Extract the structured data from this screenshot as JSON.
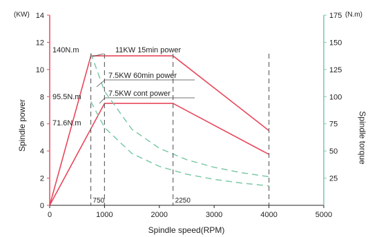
{
  "chart_data": {
    "type": "line",
    "xlabel": "Spindle speed(RPM)",
    "ylabel_left": "Spindle power",
    "ylabel_right": "Spindle torque",
    "unit_left": "(KW)",
    "unit_right": "(N.m)",
    "xlim": [
      0,
      5000
    ],
    "ylim_left": [
      0,
      14
    ],
    "ylim_right": [
      0,
      175
    ],
    "x_ticks": [
      "0",
      "1000",
      "2000",
      "3000",
      "4000",
      "5000"
    ],
    "x_tick_values": [
      0,
      1000,
      2000,
      3000,
      4000,
      5000
    ],
    "y_left_ticks": [
      "0",
      "2",
      "4",
      "6",
      "8",
      "10",
      "12",
      "14"
    ],
    "y_left_tick_values": [
      0,
      2,
      4,
      6,
      8,
      10,
      12,
      14
    ],
    "y_right_ticks": [
      "25",
      "50",
      "75",
      "100",
      "125",
      "150",
      "175"
    ],
    "y_right_tick_values": [
      25,
      50,
      75,
      100,
      125,
      150,
      175
    ],
    "colors": {
      "power": "#e8465a",
      "torque": "#7cc9a6",
      "axis_left": "#e8465a",
      "axis_right": "#7cc9a6",
      "marker": "#666666"
    },
    "series": [
      {
        "kind": "power",
        "axis": "left",
        "x": [
          0,
          750,
          2250,
          4000
        ],
        "y": [
          0,
          11,
          11,
          5.5
        ]
      },
      {
        "kind": "power",
        "axis": "left",
        "x": [
          0,
          1000,
          2250,
          4000
        ],
        "y": [
          0,
          7.5,
          7.5,
          3.75
        ]
      },
      {
        "kind": "torque",
        "axis": "right",
        "x": [
          750,
          1000,
          1500,
          2000,
          2500,
          3000,
          3500,
          4000
        ],
        "y": [
          140,
          105,
          70,
          52.5,
          42,
          35,
          30,
          26.3
        ]
      },
      {
        "kind": "torque",
        "axis": "right",
        "x": [
          750,
          1000,
          1500,
          2000,
          2500,
          3000,
          3500,
          4000
        ],
        "y": [
          95.5,
          71.6,
          47.7,
          35.8,
          28.6,
          23.9,
          20.5,
          17.9
        ]
      }
    ],
    "markers": [
      {
        "x": 750,
        "label": "750"
      },
      {
        "x": 1000,
        "label": ""
      },
      {
        "x": 2250,
        "label": "2250"
      },
      {
        "x": 4000,
        "label": ""
      }
    ],
    "annotations": [
      {
        "text": "11KW 15min power"
      },
      {
        "text": "7.5KW 60min power"
      },
      {
        "text": "7.5KW cont power"
      },
      {
        "text": "140N.m"
      },
      {
        "text": "95.5N.m"
      },
      {
        "text": "71.6N.m"
      }
    ]
  }
}
